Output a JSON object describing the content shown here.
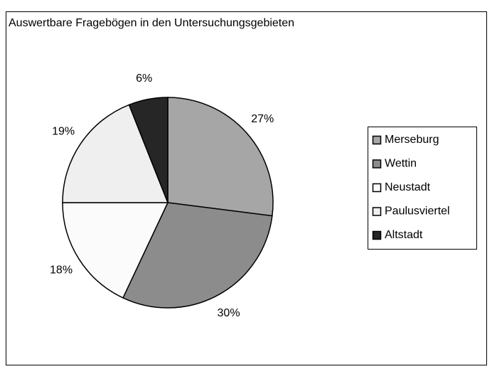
{
  "chart_data": {
    "type": "pie",
    "title": "Auswertbare Fragebögen in den Untersuchungsgebieten",
    "categories": [
      "Merseburg",
      "Wettin",
      "Neustadt",
      "Paulusviertel",
      "Altstadt"
    ],
    "values": [
      27,
      30,
      18,
      19,
      6
    ],
    "value_labels": [
      "27%",
      "30%",
      "18%",
      "19%",
      "6%"
    ],
    "colors": [
      "#a6a6a6",
      "#8c8c8c",
      "#fbfbfb",
      "#efefef",
      "#262626"
    ],
    "legend": "right"
  }
}
